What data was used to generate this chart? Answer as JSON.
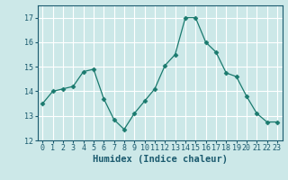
{
  "x": [
    0,
    1,
    2,
    3,
    4,
    5,
    6,
    7,
    8,
    9,
    10,
    11,
    12,
    13,
    14,
    15,
    16,
    17,
    18,
    19,
    20,
    21,
    22,
    23
  ],
  "y": [
    13.5,
    14.0,
    14.1,
    14.2,
    14.8,
    14.9,
    13.7,
    12.85,
    12.45,
    13.1,
    13.6,
    14.1,
    15.05,
    15.5,
    17.0,
    17.0,
    16.0,
    15.6,
    14.75,
    14.6,
    13.8,
    13.1,
    12.75,
    12.75
  ],
  "xlabel": "Humidex (Indice chaleur)",
  "ylim": [
    12,
    17.5
  ],
  "xlim": [
    -0.5,
    23.5
  ],
  "yticks": [
    12,
    13,
    14,
    15,
    16,
    17
  ],
  "xticks": [
    0,
    1,
    2,
    3,
    4,
    5,
    6,
    7,
    8,
    9,
    10,
    11,
    12,
    13,
    14,
    15,
    16,
    17,
    18,
    19,
    20,
    21,
    22,
    23
  ],
  "line_color": "#1a7a6e",
  "marker": "D",
  "marker_size": 2.5,
  "bg_color": "#cce8e8",
  "grid_color": "#ffffff",
  "label_color": "#1a5a6e",
  "font_family": "monospace",
  "tick_fontsize": 6.0,
  "xlabel_fontsize": 7.5
}
